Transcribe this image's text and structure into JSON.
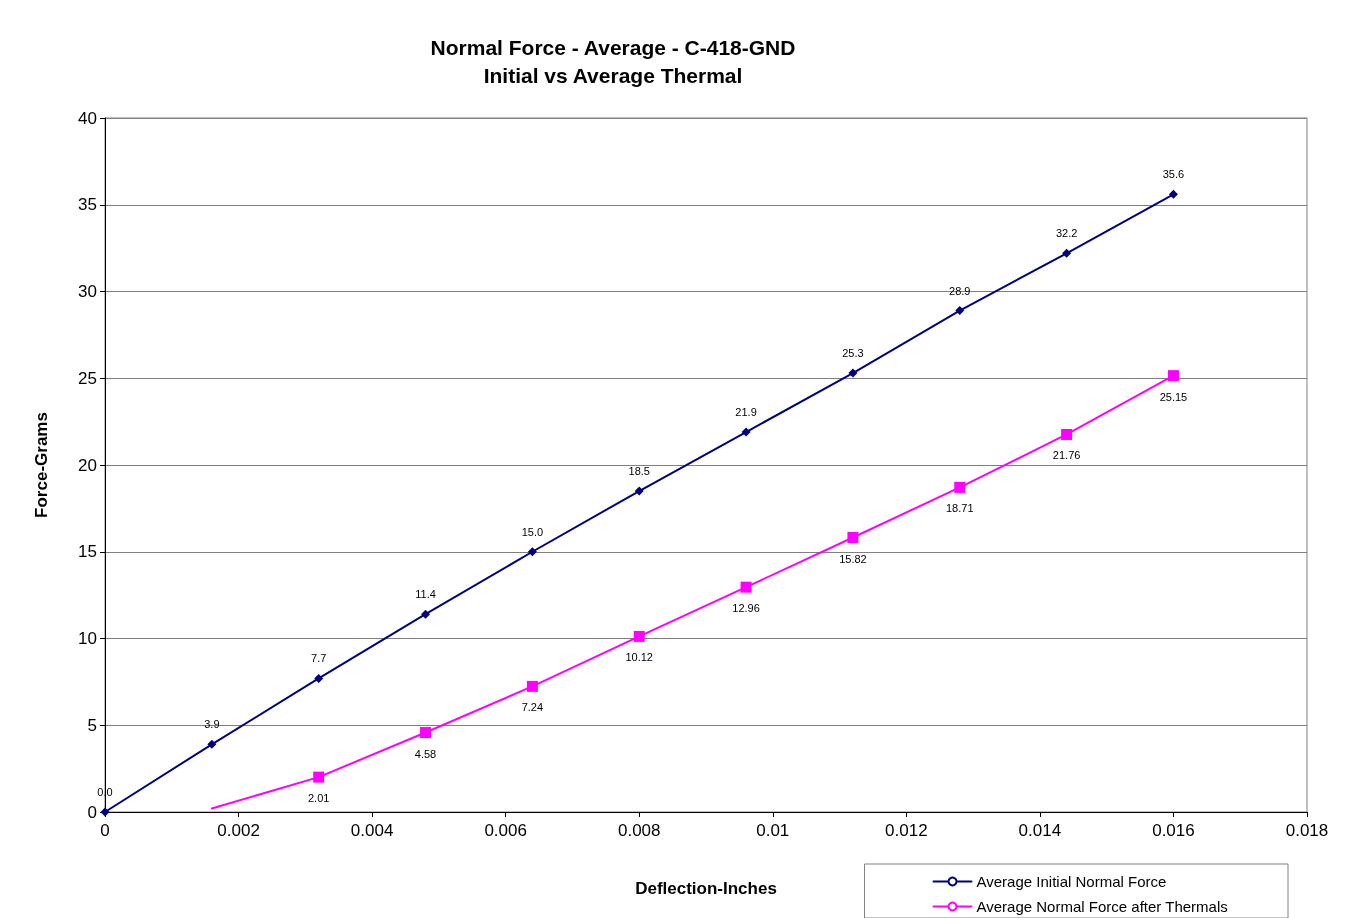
{
  "chart_data": {
    "type": "line",
    "title": "Normal Force - Average - C-418-GND\nInitial vs Average Thermal",
    "xlabel": "Deflection-Inches",
    "ylabel": "Force-Grams",
    "xlim": [
      0,
      0.018
    ],
    "xticks": [
      0,
      0.002,
      0.004,
      0.006,
      0.008,
      0.01,
      0.012,
      0.014,
      0.016,
      0.018
    ],
    "ylim": [
      0,
      40
    ],
    "yticks": [
      0,
      5,
      10,
      15,
      20,
      25,
      30,
      35,
      40
    ],
    "grid": "y",
    "legend": "bottom right",
    "series": [
      {
        "name": "Average Initial Normal Force",
        "color": "#000080",
        "marker": "diamond",
        "x": [
          0,
          0.0016,
          0.0032,
          0.0048,
          0.0064,
          0.008,
          0.0096,
          0.0112,
          0.0128,
          0.0144,
          0.016
        ],
        "values": [
          0.0,
          3.9,
          7.7,
          11.4,
          15.0,
          18.5,
          21.9,
          25.3,
          28.9,
          32.2,
          35.6
        ],
        "value_labels": [
          "0.0",
          "3.9",
          "7.7",
          "11.4",
          "15.0",
          "18.5",
          "21.9",
          "25.3",
          "28.9",
          "32.2",
          "35.6"
        ]
      },
      {
        "name": "Average Normal Force after Thermals",
        "color": "#ff00ff",
        "marker": "square",
        "x": [
          0.0016,
          0.0032,
          0.0048,
          0.0064,
          0.008,
          0.0096,
          0.0112,
          0.0128,
          0.0144,
          0.016
        ],
        "values": [
          0.2,
          2.01,
          4.58,
          7.24,
          10.12,
          12.96,
          15.82,
          18.71,
          21.76,
          25.15
        ],
        "value_labels": [
          null,
          "2.01",
          "4.58",
          "7.24",
          "10.12",
          "12.96",
          "15.82",
          "18.71",
          "21.76",
          "25.15"
        ]
      }
    ]
  }
}
